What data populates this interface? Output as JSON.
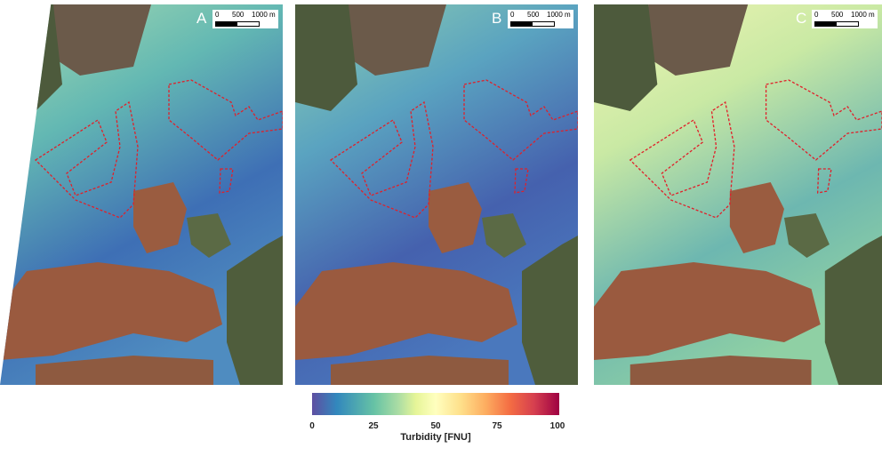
{
  "panels": [
    {
      "label": "A",
      "water_color": "#4f8cc0"
    },
    {
      "label": "B",
      "water_color": "#4a78bd"
    },
    {
      "label": "C",
      "water_color": "#8fd0a4"
    }
  ],
  "scale_bar": {
    "tick_0": "0",
    "tick_500": "500",
    "tick_1000": "1000 m"
  },
  "colorbar": {
    "title": "Turbidity [FNU]",
    "ticks": [
      "0",
      "25",
      "50",
      "75",
      "100"
    ],
    "range": [
      0,
      100
    ],
    "colormap": [
      "#5e4fa2",
      "#3288bd",
      "#66c2a5",
      "#abdda4",
      "#e6f598",
      "#ffffbf",
      "#fee08b",
      "#fdae61",
      "#f46d43",
      "#d53e4f",
      "#9e0142"
    ]
  },
  "overlay_color": "#e0202a"
}
